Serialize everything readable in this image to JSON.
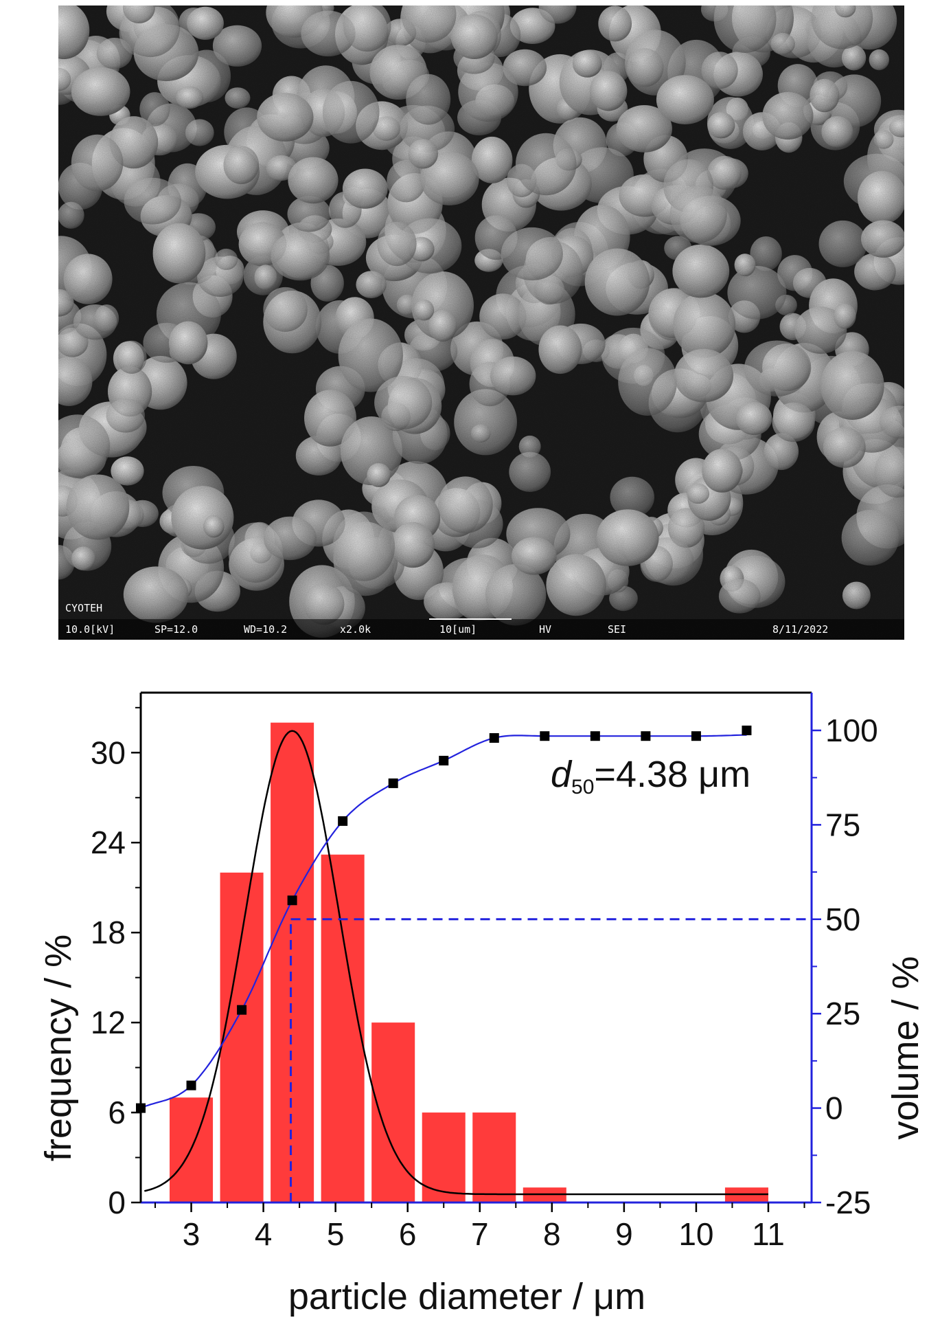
{
  "sem_image": {
    "info_bar": [
      "10.0[kV]",
      "SP=12.0",
      "WD=10.2",
      "x2.0k",
      "10[um]",
      "HV",
      "SEI",
      "8/11/2022"
    ],
    "maker": "CYOTEH"
  },
  "chart_data": {
    "type": "bar",
    "xlabel": "particle diameter / μm",
    "ylabel": "frequency / %",
    "y2label": "volume / %",
    "xlim": [
      2.3,
      11.6
    ],
    "ylim": [
      0,
      34
    ],
    "y2lim": [
      -25,
      110
    ],
    "x_ticks": [
      3,
      4,
      5,
      6,
      7,
      8,
      9,
      10,
      11
    ],
    "y_ticks": [
      0,
      6,
      12,
      18,
      24,
      30
    ],
    "y2_ticks": [
      -25,
      0,
      25,
      50,
      75,
      100
    ],
    "colors": {
      "bars": "#ff3b3b",
      "volume": "#2222dd",
      "fit": "#000000",
      "points": "#000000"
    },
    "bars": [
      {
        "x": 3.0,
        "value": 7.0
      },
      {
        "x": 3.7,
        "value": 22.0
      },
      {
        "x": 4.4,
        "value": 32.0
      },
      {
        "x": 5.1,
        "value": 23.2
      },
      {
        "x": 5.8,
        "value": 12.0
      },
      {
        "x": 6.5,
        "value": 6.0
      },
      {
        "x": 7.2,
        "value": 6.0
      },
      {
        "x": 7.9,
        "value": 1.0
      },
      {
        "x": 10.7,
        "value": 1.0
      }
    ],
    "bar_width": 0.6,
    "fit_curve": {
      "type": "gaussian",
      "amplitude": 30.9,
      "center": 4.4,
      "sigma": 0.65,
      "baseline": 0.55
    },
    "volume_points": [
      {
        "x": 2.3,
        "y": 0
      },
      {
        "x": 3.0,
        "y": 6
      },
      {
        "x": 3.7,
        "y": 26
      },
      {
        "x": 4.4,
        "y": 55
      },
      {
        "x": 5.1,
        "y": 76
      },
      {
        "x": 5.8,
        "y": 86
      },
      {
        "x": 6.5,
        "y": 92
      },
      {
        "x": 7.2,
        "y": 98
      },
      {
        "x": 7.9,
        "y": 98.5
      },
      {
        "x": 8.6,
        "y": 98.5
      },
      {
        "x": 9.3,
        "y": 98.5
      },
      {
        "x": 10.0,
        "y": 98.5
      },
      {
        "x": 10.7,
        "y": 100
      }
    ],
    "d50": {
      "value": 4.38,
      "label_base": "d",
      "label_sub": "50",
      "label_rest": "=4.38 μm",
      "volume_level": 50
    }
  }
}
